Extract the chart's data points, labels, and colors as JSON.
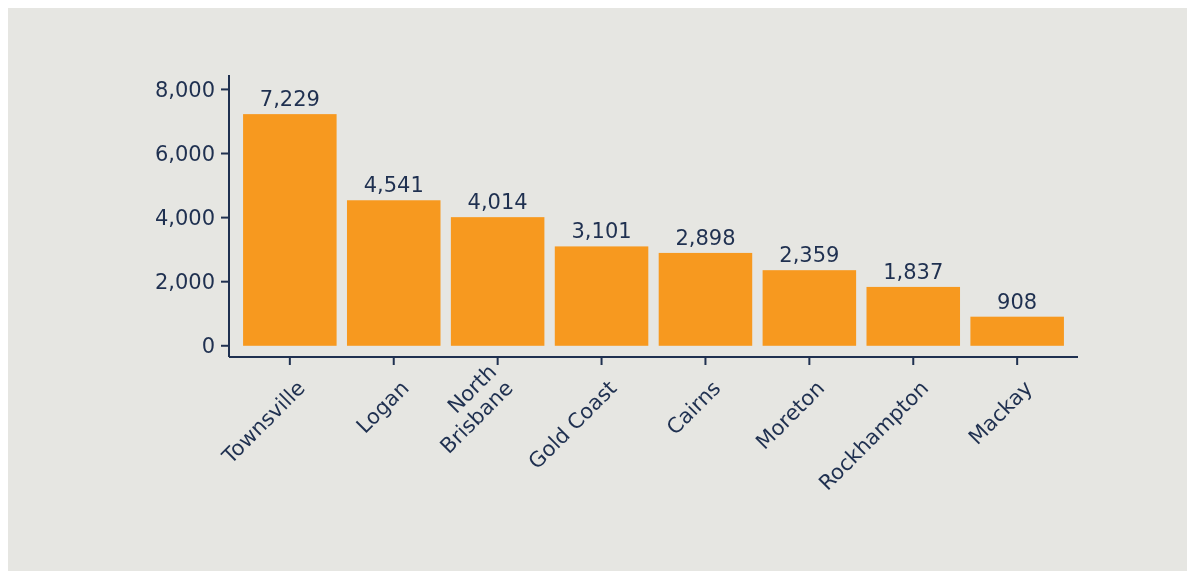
{
  "chart_data": {
    "type": "bar",
    "categories": [
      "Townsville",
      "Logan",
      "North Brisbane",
      "Gold Coast",
      "Cairns",
      "Moreton",
      "Rockhampton",
      "Mackay"
    ],
    "values": [
      7229,
      4541,
      4014,
      3101,
      2898,
      2359,
      1837,
      908
    ],
    "color": "#f7991f",
    "ylim": [
      -350,
      8450
    ],
    "yticks": [
      {
        "value": 0,
        "label": "0"
      },
      {
        "value": 2000,
        "label": "2,000"
      },
      {
        "value": 4000,
        "label": "4,000"
      },
      {
        "value": 6000,
        "label": "6,000"
      },
      {
        "value": 8000,
        "label": "8,000"
      }
    ],
    "value_labels": [
      "7,229",
      "4,541",
      "4,014",
      "3,101",
      "2,898",
      "2,359",
      "1,837",
      "908"
    ],
    "grid": false
  }
}
